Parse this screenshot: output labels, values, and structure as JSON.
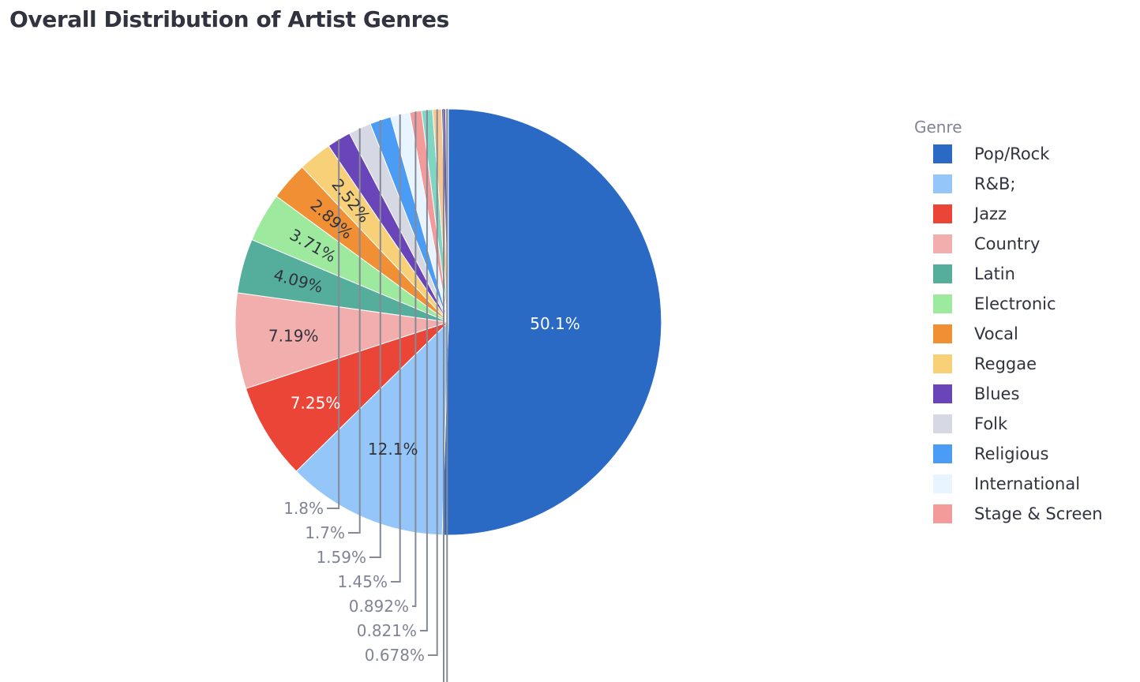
{
  "title": "Overall Distribution of Artist Genres",
  "chart_data": {
    "type": "pie",
    "title": "Overall Distribution of Artist Genres",
    "legend_title": "Genre",
    "legend_position": "right",
    "direction": "clockwise",
    "start_angle": "top",
    "slices": [
      {
        "label": "Pop/Rock",
        "value": 50.1,
        "value_label": "50.1%",
        "color": "#2a6ac4",
        "text_color": "#ffffff"
      },
      {
        "label": "R&B;",
        "value": 12.1,
        "value_label": "12.1%",
        "color": "#95c6f9",
        "text_color": "#31333f"
      },
      {
        "label": "Jazz",
        "value": 7.25,
        "value_label": "7.25%",
        "color": "#eb4538",
        "text_color": "#ffffff"
      },
      {
        "label": "Country",
        "value": 7.19,
        "value_label": "7.19%",
        "color": "#f2aeac",
        "text_color": "#31333f"
      },
      {
        "label": "Latin",
        "value": 4.09,
        "value_label": "4.09%",
        "color": "#55ae9c",
        "text_color": "#31333f"
      },
      {
        "label": "Electronic",
        "value": 3.71,
        "value_label": "3.71%",
        "color": "#9dea9f",
        "text_color": "#31333f"
      },
      {
        "label": "Vocal",
        "value": 2.89,
        "value_label": "2.89%",
        "color": "#f08f33",
        "text_color": "#31333f"
      },
      {
        "label": "Reggae",
        "value": 2.52,
        "value_label": "2.52%",
        "color": "#f7d078",
        "text_color": "#31333f"
      },
      {
        "label": "Blues",
        "value": 1.8,
        "value_label": "1.8%",
        "color": "#6a44b9",
        "text_color": "#808495"
      },
      {
        "label": "Folk",
        "value": 1.7,
        "value_label": "1.7%",
        "color": "#d6d9e3",
        "text_color": "#808495"
      },
      {
        "label": "Religious",
        "value": 1.59,
        "value_label": "1.59%",
        "color": "#4b9cf4",
        "text_color": "#808495"
      },
      {
        "label": "International",
        "value": 1.45,
        "value_label": "1.45%",
        "color": "#e8f4ff",
        "text_color": "#808495"
      },
      {
        "label": "Stage & Screen",
        "value": 0.892,
        "value_label": "0.892%",
        "color": "#f29b9a",
        "text_color": "#808495"
      },
      {
        "label": "",
        "value": 0.821,
        "value_label": "0.821%",
        "color": "#7fd7c2",
        "text_color": "#808495"
      },
      {
        "label": "",
        "value": 0.678,
        "value_label": "0.678%",
        "color": "#f7c894",
        "text_color": "#808495"
      },
      {
        "label": "",
        "value": 0.3,
        "value_label": "",
        "color": "#6a5ab8",
        "text_color": "#808495"
      },
      {
        "label": "",
        "value": 0.2,
        "value_label": "",
        "color": "#c8c8d4",
        "text_color": "#808495"
      }
    ],
    "leader_line_color": "#868996"
  }
}
